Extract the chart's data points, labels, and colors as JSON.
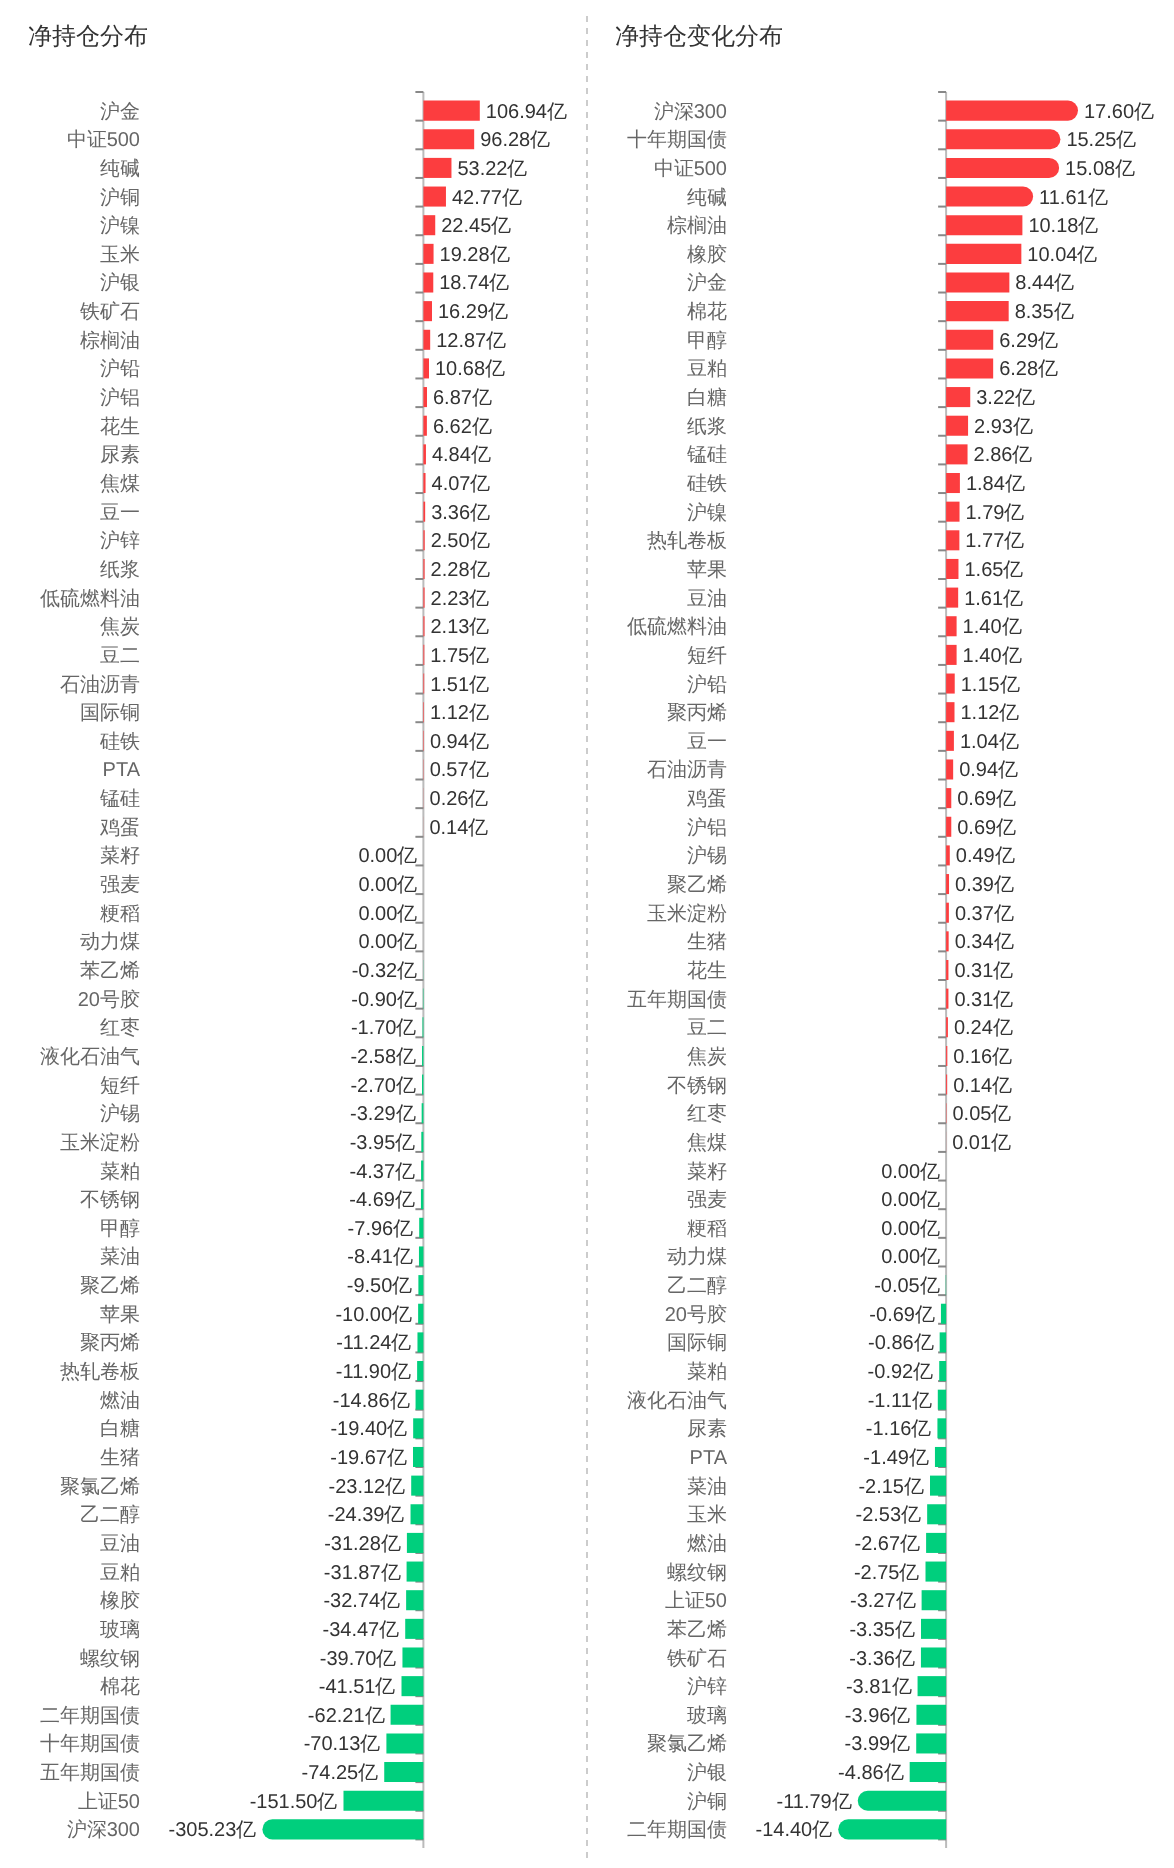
{
  "chart_data": [
    {
      "type": "bar",
      "orientation": "horizontal",
      "title": "净持仓分布",
      "data_labels": true,
      "categories": [
        "沪金",
        "中证500",
        "纯碱",
        "沪铜",
        "沪镍",
        "玉米",
        "沪银",
        "铁矿石",
        "棕榈油",
        "沪铅",
        "沪铝",
        "花生",
        "尿素",
        "焦煤",
        "豆一",
        "沪锌",
        "纸浆",
        "低硫燃料油",
        "焦炭",
        "豆二",
        "石油沥青",
        "国际铜",
        "硅铁",
        "PTA",
        "锰硅",
        "鸡蛋",
        "菜籽",
        "强麦",
        "粳稻",
        "动力煤",
        "苯乙烯",
        "20号胶",
        "红枣",
        "液化石油气",
        "短纤",
        "沪锡",
        "玉米淀粉",
        "菜粕",
        "不锈钢",
        "甲醇",
        "菜油",
        "聚乙烯",
        "苹果",
        "聚丙烯",
        "热轧卷板",
        "燃油",
        "白糖",
        "生猪",
        "聚氯乙烯",
        "乙二醇",
        "豆油",
        "豆粕",
        "橡胶",
        "玻璃",
        "螺纹钢",
        "棉花",
        "二年期国债",
        "十年期国债",
        "五年期国债",
        "上证50",
        "沪深300"
      ],
      "values": [
        106.94,
        96.28,
        53.22,
        42.77,
        22.45,
        19.28,
        18.74,
        16.29,
        12.87,
        10.68,
        6.87,
        6.62,
        4.84,
        4.07,
        3.36,
        2.5,
        2.28,
        2.23,
        2.13,
        1.75,
        1.51,
        1.12,
        0.94,
        0.57,
        0.26,
        0.14,
        0.0,
        0.0,
        0.0,
        0.0,
        -0.32,
        -0.9,
        -1.7,
        -2.58,
        -2.7,
        -3.29,
        -3.95,
        -4.37,
        -4.69,
        -7.96,
        -8.41,
        -9.5,
        -10.0,
        -11.24,
        -11.9,
        -14.86,
        -19.4,
        -19.67,
        -23.12,
        -24.39,
        -31.28,
        -31.87,
        -32.74,
        -34.47,
        -39.7,
        -41.51,
        -62.21,
        -70.13,
        -74.25,
        -151.5,
        -305.23
      ],
      "value_labels": [
        "106.94亿",
        "96.28亿",
        "53.22亿",
        "42.77亿",
        "22.45亿",
        "19.28亿",
        "18.74亿",
        "16.29亿",
        "12.87亿",
        "10.68亿",
        "6.87亿",
        "6.62亿",
        "4.84亿",
        "4.07亿",
        "3.36亿",
        "2.50亿",
        "2.28亿",
        "2.23亿",
        "2.13亿",
        "1.75亿",
        "1.51亿",
        "1.12亿",
        "0.94亿",
        "0.57亿",
        "0.26亿",
        "0.14亿",
        "0.00亿",
        "0.00亿",
        "0.00亿",
        "0.00亿",
        "-0.32亿",
        "-0.90亿",
        "-1.70亿",
        "-2.58亿",
        "-2.70亿",
        "-3.29亿",
        "-3.95亿",
        "-4.37亿",
        "-4.69亿",
        "-7.96亿",
        "-8.41亿",
        "-9.50亿",
        "-10.00亿",
        "-11.24亿",
        "-11.90亿",
        "-14.86亿",
        "-19.40亿",
        "-19.67亿",
        "-23.12亿",
        "-24.39亿",
        "-31.28亿",
        "-31.87亿",
        "-32.74亿",
        "-34.47亿",
        "-39.70亿",
        "-41.51亿",
        "-62.21亿",
        "-70.13亿",
        "-74.25亿",
        "-151.50亿",
        "-305.23亿"
      ],
      "colors": [
        "#fc3d3f",
        "#fc3d3f",
        "#fc3d3f",
        "#fc3d3f",
        "#fc3d3f",
        "#fc3d3f",
        "#fc3d3f",
        "#fc3d3f",
        "#fc3d3f",
        "#fc3d3f",
        "#fc3d3f",
        "#fc3d3f",
        "#fc3d3f",
        "#fc3d3f",
        "#fc3d3f",
        "#fc3d3f",
        "#fc3d3f",
        "#fc3d3f",
        "#fc3d3f",
        "#fc3d3f",
        "#fc3d3f",
        "#fc3d3f",
        "#fc3d3f",
        "#fc3d3f",
        "#fc3d3f",
        "#fc3d3f",
        "#00cf7d",
        "#00cf7d",
        "#00cf7d",
        "#00cf7d",
        "#00cf7d",
        "#00cf7d",
        "#00cf7d",
        "#00cf7d",
        "#00cf7d",
        "#00cf7d",
        "#00cf7d",
        "#00cf7d",
        "#00cf7d",
        "#00cf7d",
        "#00cf7d",
        "#00cf7d",
        "#00cf7d",
        "#00cf7d",
        "#00cf7d",
        "#00cf7d",
        "#00cf7d",
        "#00cf7d",
        "#00cf7d",
        "#00cf7d",
        "#00cf7d",
        "#00cf7d",
        "#00cf7d",
        "#00cf7d",
        "#00cf7d",
        "#00cf7d",
        "#00cf7d",
        "#00cf7d",
        "#00cf7d",
        "#00cf7d",
        "#00cf7d"
      ]
    },
    {
      "type": "bar",
      "orientation": "horizontal",
      "title": "净持仓变化分布",
      "data_labels": true,
      "categories": [
        "沪深300",
        "十年期国债",
        "中证500",
        "纯碱",
        "棕榈油",
        "橡胶",
        "沪金",
        "棉花",
        "甲醇",
        "豆粕",
        "白糖",
        "纸浆",
        "锰硅",
        "硅铁",
        "沪镍",
        "热轧卷板",
        "苹果",
        "豆油",
        "低硫燃料油",
        "短纤",
        "沪铅",
        "聚丙烯",
        "豆一",
        "石油沥青",
        "鸡蛋",
        "沪铝",
        "沪锡",
        "聚乙烯",
        "玉米淀粉",
        "生猪",
        "花生",
        "五年期国债",
        "豆二",
        "焦炭",
        "不锈钢",
        "红枣",
        "焦煤",
        "菜籽",
        "强麦",
        "粳稻",
        "动力煤",
        "乙二醇",
        "20号胶",
        "国际铜",
        "菜粕",
        "液化石油气",
        "尿素",
        "PTA",
        "菜油",
        "玉米",
        "燃油",
        "螺纹钢",
        "上证50",
        "苯乙烯",
        "铁矿石",
        "沪锌",
        "玻璃",
        "聚氯乙烯",
        "沪银",
        "沪铜",
        "二年期国债"
      ],
      "values": [
        17.6,
        15.25,
        15.08,
        11.61,
        10.18,
        10.04,
        8.44,
        8.35,
        6.29,
        6.28,
        3.22,
        2.93,
        2.86,
        1.84,
        1.79,
        1.77,
        1.65,
        1.61,
        1.4,
        1.4,
        1.15,
        1.12,
        1.04,
        0.94,
        0.69,
        0.69,
        0.49,
        0.39,
        0.37,
        0.34,
        0.31,
        0.31,
        0.24,
        0.16,
        0.14,
        0.05,
        0.01,
        0.0,
        0.0,
        0.0,
        0.0,
        -0.05,
        -0.69,
        -0.86,
        -0.92,
        -1.11,
        -1.16,
        -1.49,
        -2.15,
        -2.53,
        -2.67,
        -2.75,
        -3.27,
        -3.35,
        -3.36,
        -3.81,
        -3.96,
        -3.99,
        -4.86,
        -11.79,
        -14.4
      ],
      "value_labels": [
        "17.60亿",
        "15.25亿",
        "15.08亿",
        "11.61亿",
        "10.18亿",
        "10.04亿",
        "8.44亿",
        "8.35亿",
        "6.29亿",
        "6.28亿",
        "3.22亿",
        "2.93亿",
        "2.86亿",
        "1.84亿",
        "1.79亿",
        "1.77亿",
        "1.65亿",
        "1.61亿",
        "1.40亿",
        "1.40亿",
        "1.15亿",
        "1.12亿",
        "1.04亿",
        "0.94亿",
        "0.69亿",
        "0.69亿",
        "0.49亿",
        "0.39亿",
        "0.37亿",
        "0.34亿",
        "0.31亿",
        "0.31亿",
        "0.24亿",
        "0.16亿",
        "0.14亿",
        "0.05亿",
        "0.01亿",
        "0.00亿",
        "0.00亿",
        "0.00亿",
        "0.00亿",
        "-0.05亿",
        "-0.69亿",
        "-0.86亿",
        "-0.92亿",
        "-1.11亿",
        "-1.16亿",
        "-1.49亿",
        "-2.15亿",
        "-2.53亿",
        "-2.67亿",
        "-2.75亿",
        "-3.27亿",
        "-3.35亿",
        "-3.36亿",
        "-3.81亿",
        "-3.96亿",
        "-3.99亿",
        "-4.86亿",
        "-11.79亿",
        "-14.40亿"
      ],
      "colors": [
        "#fc3d3f",
        "#fc3d3f",
        "#fc3d3f",
        "#fc3d3f",
        "#fc3d3f",
        "#fc3d3f",
        "#fc3d3f",
        "#fc3d3f",
        "#fc3d3f",
        "#fc3d3f",
        "#fc3d3f",
        "#fc3d3f",
        "#fc3d3f",
        "#fc3d3f",
        "#fc3d3f",
        "#fc3d3f",
        "#fc3d3f",
        "#fc3d3f",
        "#fc3d3f",
        "#fc3d3f",
        "#fc3d3f",
        "#fc3d3f",
        "#fc3d3f",
        "#fc3d3f",
        "#fc3d3f",
        "#fc3d3f",
        "#fc3d3f",
        "#fc3d3f",
        "#fc3d3f",
        "#fc3d3f",
        "#fc3d3f",
        "#fc3d3f",
        "#fc3d3f",
        "#fc3d3f",
        "#fc3d3f",
        "#fc3d3f",
        "#fc3d3f",
        "#00cf7d",
        "#00cf7d",
        "#00cf7d",
        "#00cf7d",
        "#00cf7d",
        "#00cf7d",
        "#00cf7d",
        "#00cf7d",
        "#00cf7d",
        "#00cf7d",
        "#00cf7d",
        "#00cf7d",
        "#00cf7d",
        "#00cf7d",
        "#00cf7d",
        "#00cf7d",
        "#00cf7d",
        "#00cf7d",
        "#00cf7d",
        "#00cf7d",
        "#00cf7d",
        "#00cf7d",
        "#00cf7d",
        "#00cf7d"
      ]
    }
  ]
}
